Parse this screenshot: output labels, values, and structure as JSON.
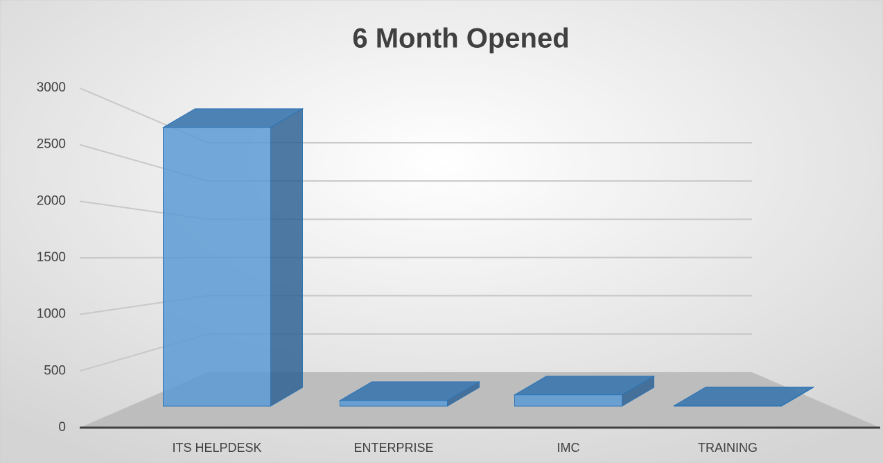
{
  "chart_data": {
    "type": "bar3d",
    "title": "6 Month Opened",
    "categories": [
      "ITS HELPDESK",
      "ENTERPRISE",
      "IMC",
      "TRAINING"
    ],
    "values": [
      2950,
      60,
      120,
      5
    ],
    "color": "#5b9bd5",
    "ylim": [
      0,
      3000
    ],
    "yticks": [
      0,
      500,
      1000,
      1500,
      2000,
      2500,
      3000
    ],
    "grid": true
  }
}
